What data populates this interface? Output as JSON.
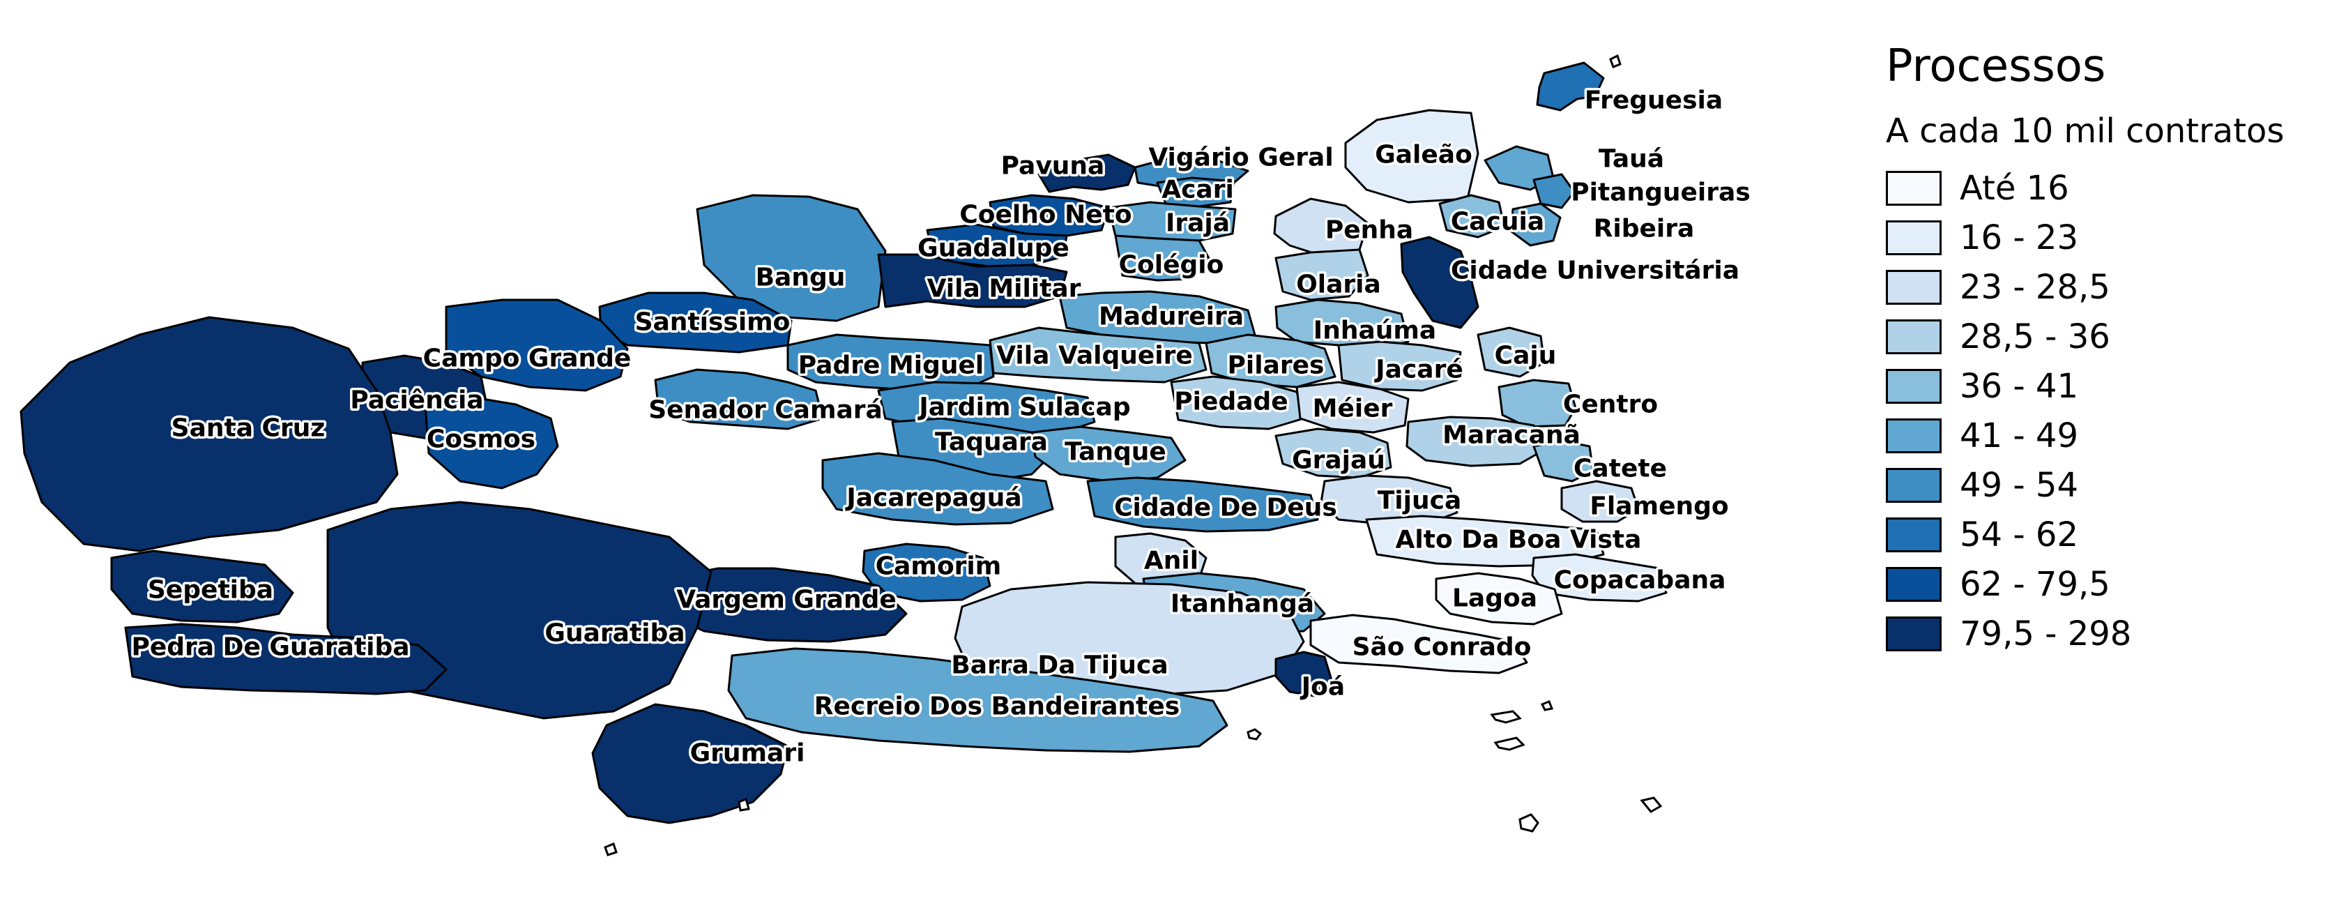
{
  "legend": {
    "title": "Processos",
    "subtitle": "A cada 10 mil contratos",
    "classes": [
      {
        "label": "Até 16",
        "color": "#f7fbff"
      },
      {
        "label": "16 - 23",
        "color": "#e2eef9"
      },
      {
        "label": "23 - 28,5",
        "color": "#cfe1f2"
      },
      {
        "label": "28,5 - 36",
        "color": "#b0d2e8"
      },
      {
        "label": "36 - 41",
        "color": "#89bfdd"
      },
      {
        "label": "41 - 49",
        "color": "#60a7d2"
      },
      {
        "label": "49 - 54",
        "color": "#3e8ec4"
      },
      {
        "label": "54 - 62",
        "color": "#2070b4"
      },
      {
        "label": "62 - 79,5",
        "color": "#08509b"
      },
      {
        "label": "79,5 - 298",
        "color": "#08306b"
      }
    ]
  },
  "neighborhoods": [
    {
      "name": "Freguesia",
      "class": 7
    },
    {
      "name": "Pavuna",
      "class": 9
    },
    {
      "name": "Vigário Geral",
      "class": 6
    },
    {
      "name": "Galeão",
      "class": 1
    },
    {
      "name": "Tauá",
      "class": 5
    },
    {
      "name": "Acari",
      "class": 6
    },
    {
      "name": "Pitangueiras",
      "class": 6
    },
    {
      "name": "Coelho Neto",
      "class": 8
    },
    {
      "name": "Irajá",
      "class": 5
    },
    {
      "name": "Penha",
      "class": 2
    },
    {
      "name": "Cacuia",
      "class": 4
    },
    {
      "name": "Ribeira",
      "class": 5
    },
    {
      "name": "Guadalupe",
      "class": 8
    },
    {
      "name": "Colégio",
      "class": 5
    },
    {
      "name": "Bangu",
      "class": 6
    },
    {
      "name": "Vila Militar",
      "class": 9
    },
    {
      "name": "Olaria",
      "class": 3
    },
    {
      "name": "Cidade Universitária",
      "class": 9
    },
    {
      "name": "Santíssimo",
      "class": 8
    },
    {
      "name": "Madureira",
      "class": 5
    },
    {
      "name": "Inhaúma",
      "class": 4
    },
    {
      "name": "Campo Grande",
      "class": 8
    },
    {
      "name": "Padre Miguel",
      "class": 6
    },
    {
      "name": "Vila Valqueire",
      "class": 4
    },
    {
      "name": "Pilares",
      "class": 4
    },
    {
      "name": "Jacaré",
      "class": 3
    },
    {
      "name": "Caju",
      "class": 3
    },
    {
      "name": "Paciência",
      "class": 9
    },
    {
      "name": "Senador Camará",
      "class": 6
    },
    {
      "name": "Jardim Sulacap",
      "class": 6
    },
    {
      "name": "Piedade",
      "class": 3
    },
    {
      "name": "Méier",
      "class": 2
    },
    {
      "name": "Centro",
      "class": 4
    },
    {
      "name": "Santa Cruz",
      "class": 9
    },
    {
      "name": "Cosmos",
      "class": 8
    },
    {
      "name": "Taquara",
      "class": 6
    },
    {
      "name": "Tanque",
      "class": 5
    },
    {
      "name": "Maracanã",
      "class": 3
    },
    {
      "name": "Grajaú",
      "class": 3
    },
    {
      "name": "Catete",
      "class": 4
    },
    {
      "name": "Jacarepaguá",
      "class": 6
    },
    {
      "name": "Cidade De Deus",
      "class": 6
    },
    {
      "name": "Tijuca",
      "class": 2
    },
    {
      "name": "Flamengo",
      "class": 2
    },
    {
      "name": "Alto Da Boa Vista",
      "class": 1
    },
    {
      "name": "Sepetiba",
      "class": 9
    },
    {
      "name": "Camorim",
      "class": 7
    },
    {
      "name": "Anil",
      "class": 2
    },
    {
      "name": "Copacabana",
      "class": 1
    },
    {
      "name": "Vargem Grande",
      "class": 9
    },
    {
      "name": "Itanhangá",
      "class": 5
    },
    {
      "name": "Lagoa",
      "class": 0
    },
    {
      "name": "Guaratiba",
      "class": 9
    },
    {
      "name": "Pedra De Guaratiba",
      "class": 9
    },
    {
      "name": "São Conrado",
      "class": 0
    },
    {
      "name": "Barra Da Tijuca",
      "class": 2
    },
    {
      "name": "Joá",
      "class": 9
    },
    {
      "name": "Recreio Dos Bandeirantes",
      "class": 5
    },
    {
      "name": "Grumari",
      "class": 9
    }
  ]
}
